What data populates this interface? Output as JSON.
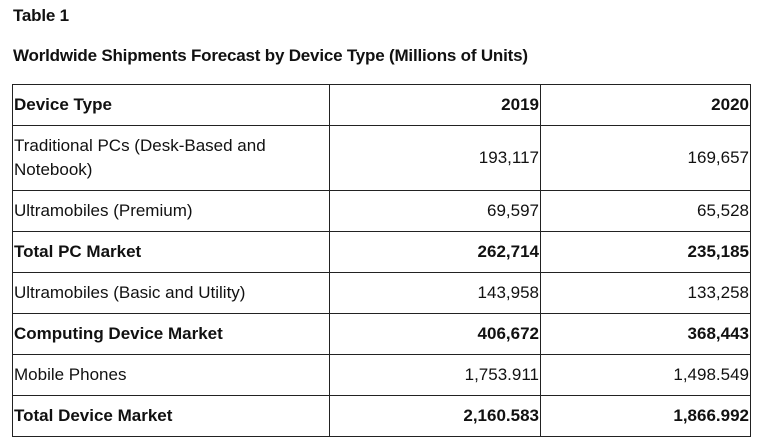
{
  "table_label": "Table 1",
  "table_title": "Worldwide Shipments Forecast by Device Type (Millions of Units)",
  "headers": [
    "Device Type",
    "2019",
    "2020"
  ],
  "rows": [
    {
      "label": "Traditional PCs (Desk-Based and Notebook)",
      "v2019": "193,117",
      "v2020": "169,657"
    },
    {
      "label": "Ultramobiles (Premium)",
      "v2019": "69,597",
      "v2020": "65,528"
    },
    {
      "label": "Total PC Market",
      "v2019": "262,714",
      "v2020": "235,185"
    },
    {
      "label": "Ultramobiles (Basic and Utility)",
      "v2019": "143,958",
      "v2020": "133,258"
    },
    {
      "label": "Computing Device Market",
      "v2019": "406,672",
      "v2020": "368,443"
    },
    {
      "label": "Mobile Phones",
      "v2019": "1,753.911",
      "v2020": "1,498.549"
    },
    {
      "label": "Total Device Market",
      "v2019": "2,160.583",
      "v2020": "1,866.992"
    }
  ]
}
